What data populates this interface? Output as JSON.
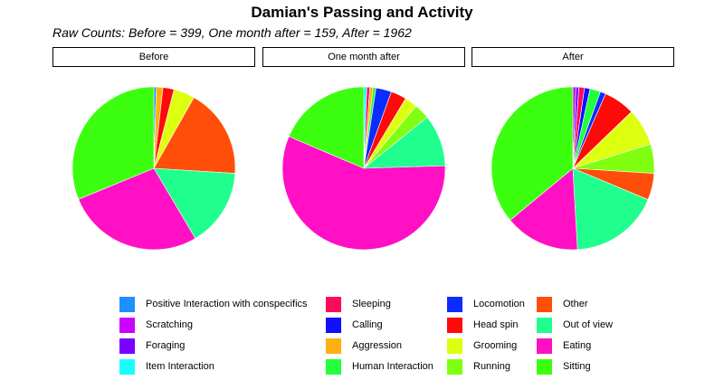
{
  "title": "Damian's Passing and Activity",
  "subtitle": "Raw Counts: Before = 399, One month after = 159, After = 1962",
  "chart_data": {
    "type": "pie",
    "categories": [
      "Positive Interaction with conspecifics",
      "Scratching",
      "Foraging",
      "Item Interaction",
      "Sleeping",
      "Calling",
      "Aggression",
      "Human Interaction",
      "Locomotion",
      "Head spin",
      "Grooming",
      "Running",
      "Other",
      "Out of view",
      "Eating",
      "Sitting"
    ],
    "colors": [
      "#1f8fff",
      "#cc00ff",
      "#7a00ff",
      "#19ffff",
      "#ff0a5a",
      "#1010ff",
      "#ffb010",
      "#22ff3c",
      "#0a2cff",
      "#ff0a0a",
      "#ddff10",
      "#80ff10",
      "#ff4e0a",
      "#20ff8e",
      "#ff10c4",
      "#3cff10"
    ],
    "panels": [
      {
        "label": "Before",
        "values": [
          0.005,
          0,
          0,
          0,
          0,
          0,
          0.013,
          0,
          0,
          0.022,
          0.042,
          0,
          0.178,
          0.155,
          0.273,
          0.312
        ]
      },
      {
        "label": "One month after",
        "values": [
          0,
          0,
          0,
          0.006,
          0.006,
          0,
          0.006,
          0.006,
          0.031,
          0.031,
          0.025,
          0.031,
          0,
          0.103,
          0.569,
          0.186
        ]
      },
      {
        "label": "After",
        "values": [
          0,
          0.006,
          0.006,
          0,
          0.011,
          0.011,
          0,
          0.021,
          0.011,
          0.062,
          0.074,
          0.058,
          0.053,
          0.178,
          0.149,
          0.36
        ]
      }
    ],
    "legend": {
      "placement": "bottom",
      "columns": [
        [
          "Positive Interaction with conspecifics",
          "Scratching",
          "Foraging",
          "Item Interaction"
        ],
        [
          "Sleeping",
          "Calling",
          "Aggression",
          "Human Interaction"
        ],
        [
          "Locomotion",
          "Head spin",
          "Grooming",
          "Running"
        ],
        [
          "Other",
          "Out of view",
          "Eating",
          "Sitting"
        ]
      ]
    }
  }
}
